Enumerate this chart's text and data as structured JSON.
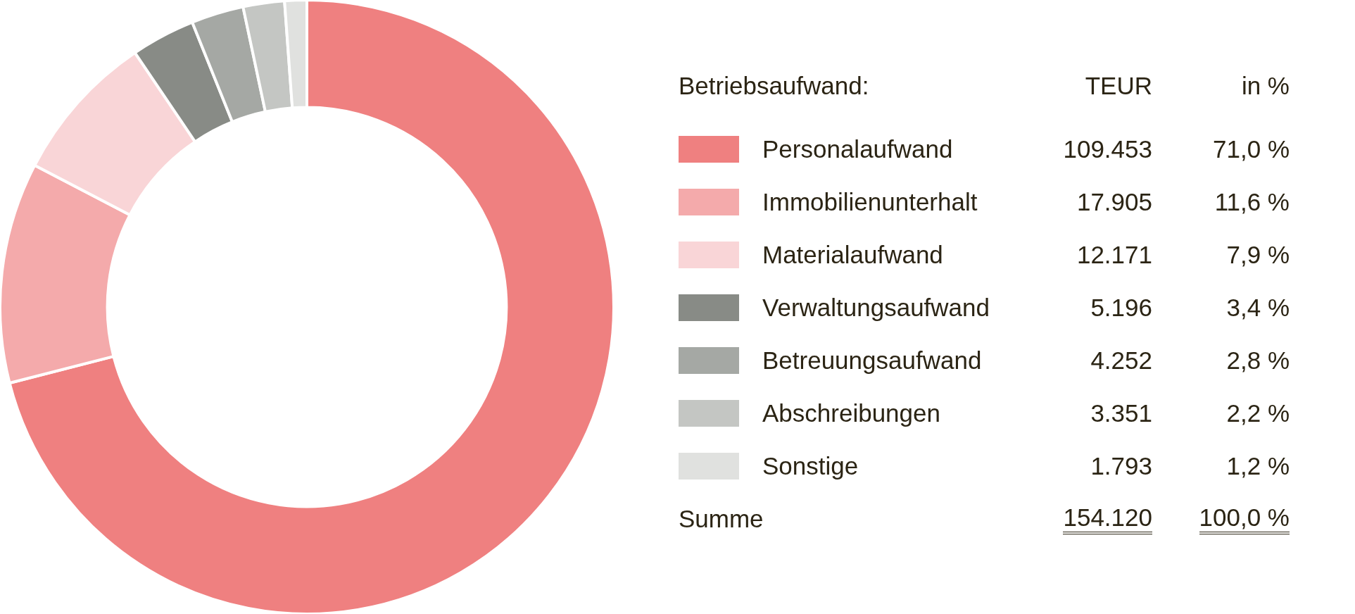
{
  "chart_data": {
    "type": "donut",
    "legend_title": "Betriebsaufwand:",
    "categories": [
      "Personalaufwand",
      "Immobilienunterhalt",
      "Materialaufwand",
      "Verwaltungsaufwand",
      "Betreuungsaufwand",
      "Abschreibungen",
      "Sonstige"
    ],
    "values": [
      109453,
      17905,
      12171,
      5196,
      4252,
      3351,
      1793
    ],
    "value_labels": [
      "109.453",
      "17.905",
      "12.171",
      "5.196",
      "4.252",
      "3.351",
      "1.793"
    ],
    "colors": [
      "#ef8080",
      "#f4aaab",
      "#f9d5d7",
      "#888b86",
      "#a5a8a4",
      "#c4c6c3",
      "#e0e1df"
    ],
    "annotations": [
      "TEUR",
      "in %",
      "71,0 %",
      "11,6 %",
      "7,9 %",
      "3,4 %",
      "2,8 %",
      "2,2 %",
      "1,2 %",
      "Summe"
    ],
    "totals": [
      "154.120",
      "100,0 %"
    ],
    "legend": "right"
  }
}
